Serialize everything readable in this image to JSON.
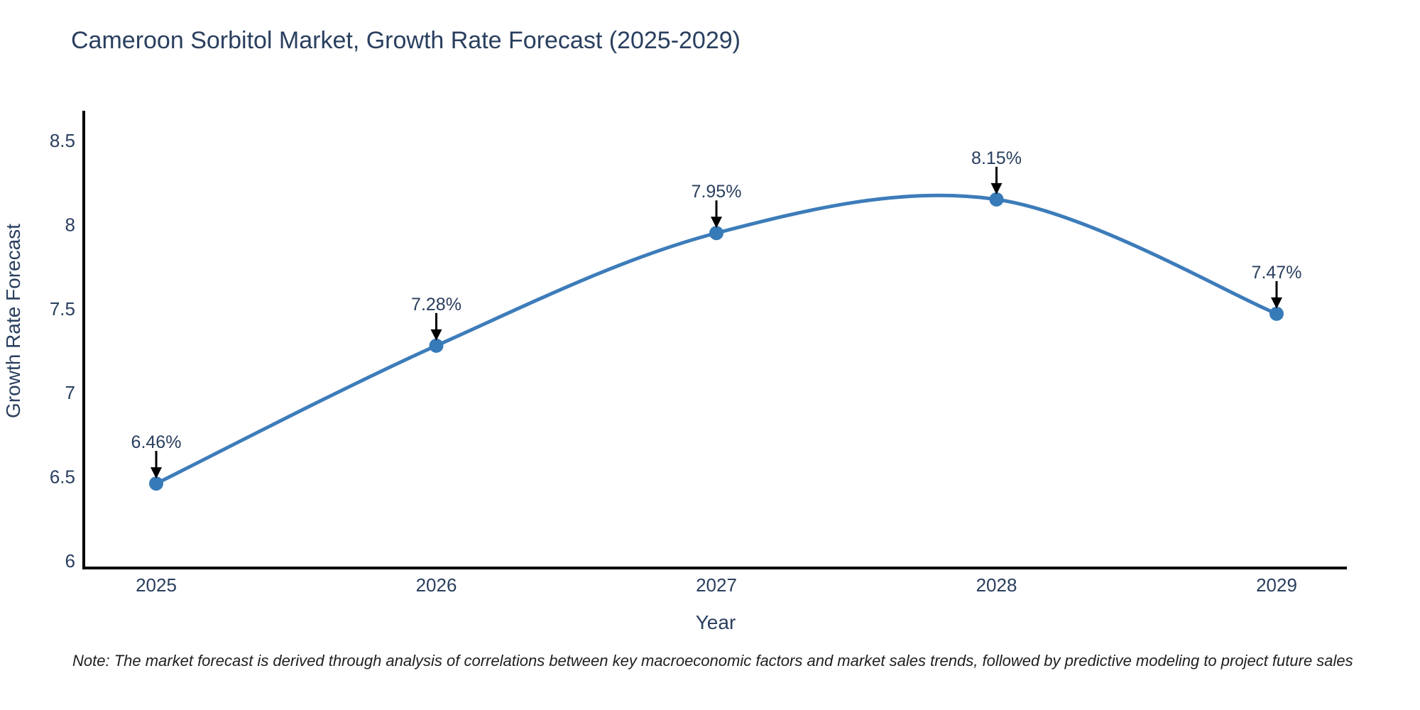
{
  "chart_data": {
    "type": "line",
    "title": "Cameroon Sorbitol Market, Growth Rate Forecast (2025-2029)",
    "xlabel": "Year",
    "ylabel": "Growth Rate Forecast",
    "categories": [
      "2025",
      "2026",
      "2027",
      "2028",
      "2029"
    ],
    "series": [
      {
        "name": "Growth Rate Forecast",
        "values": [
          6.46,
          7.28,
          7.95,
          8.15,
          7.47
        ],
        "point_labels": [
          "6.46%",
          "7.28%",
          "7.95%",
          "8.15%",
          "7.47%"
        ]
      }
    ],
    "y_ticks": [
      6,
      6.5,
      7,
      7.5,
      8,
      8.5
    ],
    "y_tick_labels": [
      "6",
      "6.5",
      "7",
      "7.5",
      "8",
      "8.5"
    ],
    "ylim": [
      5.95,
      8.65
    ],
    "line_shape": "spline",
    "grid": false,
    "legend_position": "none",
    "colors": {
      "line": "#3d7cba",
      "marker": "#377ab8",
      "axis": "#000000",
      "label_text": "#2a3f5f",
      "tick_text": "#2a3f5f",
      "annotation_text": "#2a3f5f",
      "arrow": "#000000"
    }
  },
  "note": {
    "text": "Note: The market forecast is derived through analysis of correlations between key macroeconomic factors and market sales trends, followed by predictive modeling to project future sales"
  }
}
